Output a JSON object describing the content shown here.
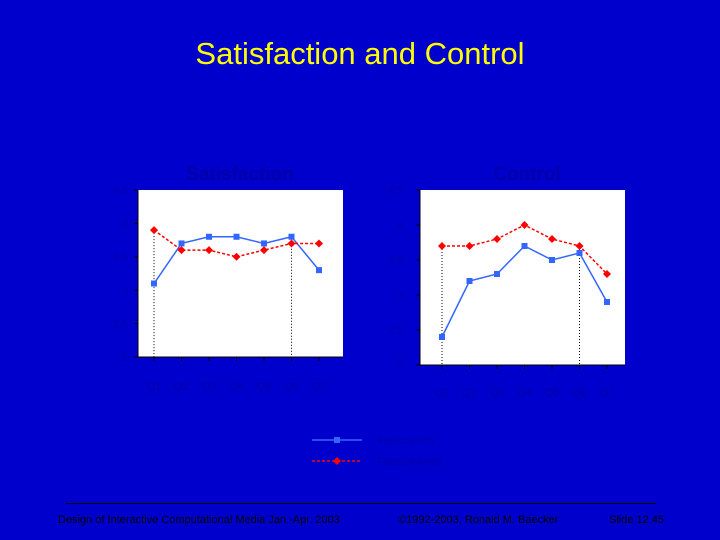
{
  "slide": {
    "title": "Satisfaction and Control",
    "background": "#0000cc",
    "title_color": "#ffff00",
    "footer_left": "Design of Interactive Computational Media Jan.-Apr. 2003",
    "footer_center": "©1992-2003, Ronald M. Baecker",
    "footer_right": "Slide 12.45"
  },
  "legend": [
    "Feature-shy",
    "Feature-keen"
  ],
  "colors": {
    "feature_shy": "#3366ff",
    "feature_keen": "#ff0000",
    "text": "#0000aa"
  },
  "chart_data": [
    {
      "type": "line",
      "title": "Satisfaction",
      "categories": [
        "Q1",
        "Q2",
        "Q3",
        "Q4",
        "Q5",
        "Q6",
        "Q7"
      ],
      "ylim": [
        2,
        4.5
      ],
      "yticks": [
        "4.5",
        "4",
        "3.5",
        "3",
        "2.5",
        "2"
      ],
      "grid": false,
      "series": [
        {
          "name": "Feature-shy",
          "values": [
            3.1,
            3.7,
            3.8,
            3.8,
            3.7,
            3.8,
            3.3
          ]
        },
        {
          "name": "Feature-keen",
          "values": [
            3.9,
            3.6,
            3.6,
            3.5,
            3.6,
            3.7,
            3.7
          ]
        }
      ]
    },
    {
      "type": "line",
      "title": "Control",
      "categories": [
        "Q1",
        "Q2",
        "Q3",
        "Q4",
        "Q5",
        "Q6",
        "Q7"
      ],
      "ylim": [
        2,
        4.5
      ],
      "yticks": [
        "4.5",
        "4",
        "3.5",
        "3",
        "2.5",
        "2"
      ],
      "grid": false,
      "series": [
        {
          "name": "Feature-shy",
          "values": [
            2.4,
            3.2,
            3.3,
            3.7,
            3.5,
            3.6,
            2.9
          ]
        },
        {
          "name": "Feature-keen",
          "values": [
            3.7,
            3.7,
            3.8,
            4.0,
            3.8,
            3.7,
            3.3
          ]
        }
      ]
    }
  ]
}
